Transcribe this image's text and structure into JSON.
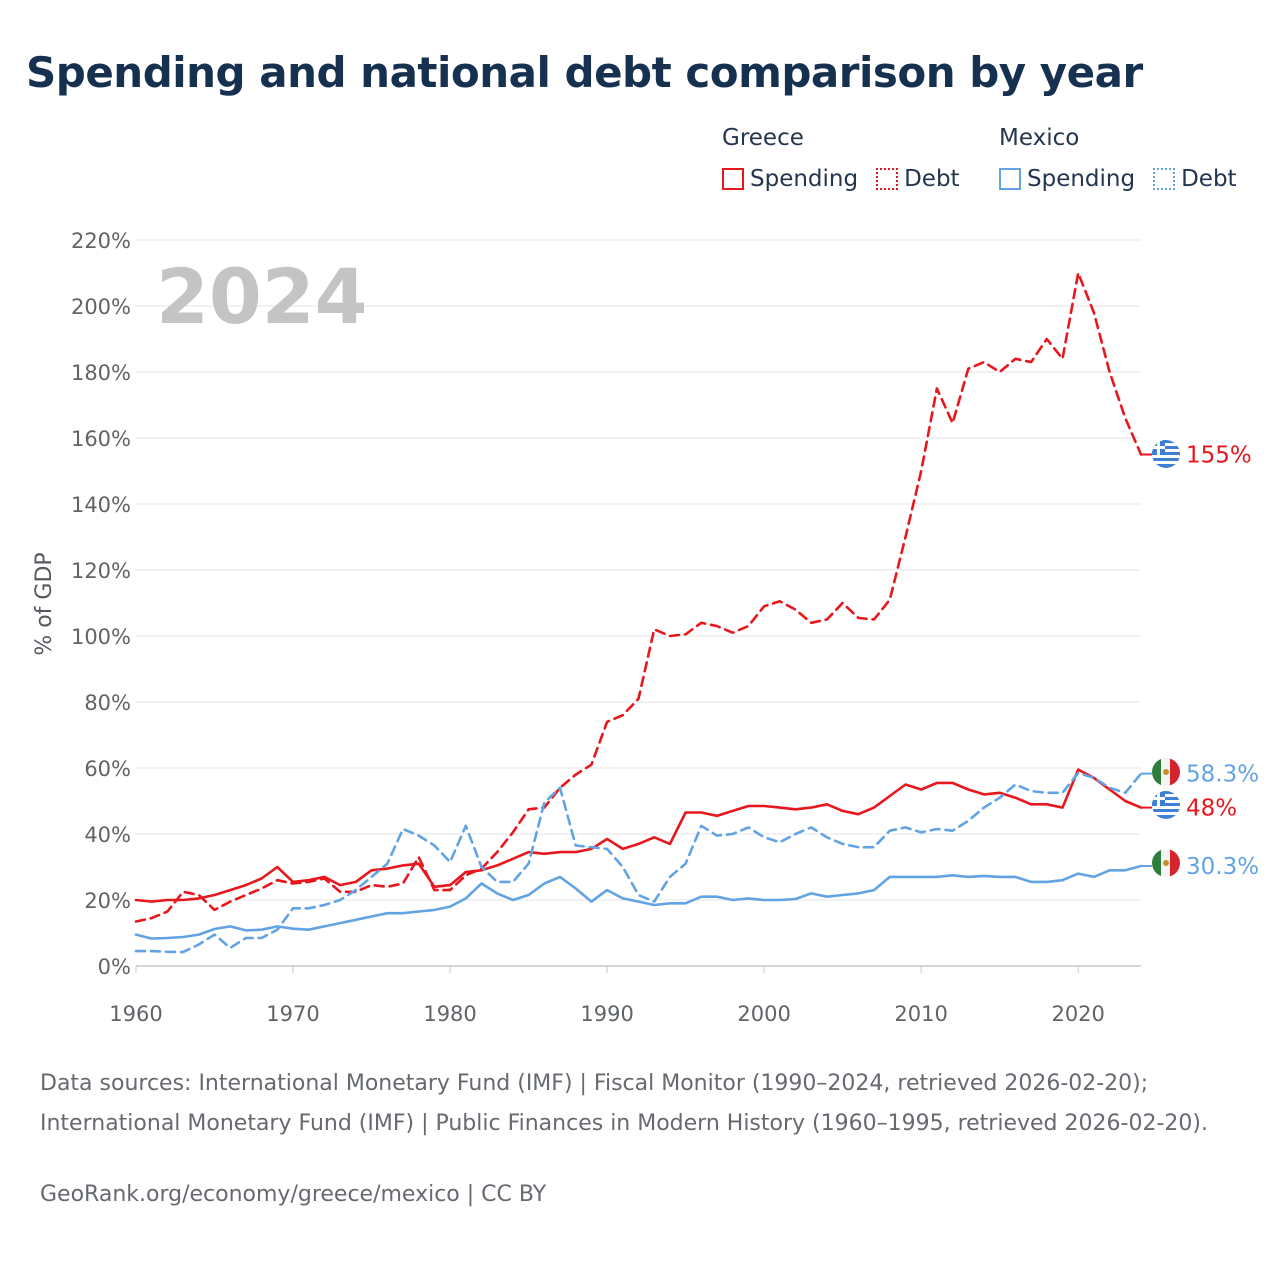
{
  "title": "Spending and national debt comparison by year",
  "legend": {
    "groups": [
      {
        "country": "Greece",
        "color": "#e8171d",
        "items": [
          {
            "label": "Spending",
            "style": "solid"
          },
          {
            "label": "Debt",
            "style": "dotted"
          }
        ]
      },
      {
        "country": "Mexico",
        "color": "#62a3e4",
        "items": [
          {
            "label": "Spending",
            "style": "solid"
          },
          {
            "label": "Debt",
            "style": "dotted"
          }
        ]
      }
    ]
  },
  "chart_data": {
    "type": "line",
    "title": "Spending and national debt comparison by year",
    "year_watermark": "2024",
    "xlabel": "",
    "ylabel": "% of GDP",
    "xlim": [
      1960,
      2024
    ],
    "ylim": [
      0,
      220
    ],
    "x_ticks": [
      1960,
      1970,
      1980,
      1990,
      2000,
      2010,
      2020
    ],
    "y_ticks": [
      0,
      20,
      40,
      60,
      80,
      100,
      120,
      140,
      160,
      180,
      200,
      220
    ],
    "y_tick_labels": [
      "0%",
      "20%",
      "40%",
      "60%",
      "80%",
      "100%",
      "120%",
      "140%",
      "160%",
      "180%",
      "200%",
      "220%"
    ],
    "grid": true,
    "x": [
      1960,
      1961,
      1962,
      1963,
      1964,
      1965,
      1966,
      1967,
      1968,
      1969,
      1970,
      1971,
      1972,
      1973,
      1974,
      1975,
      1976,
      1977,
      1978,
      1979,
      1980,
      1981,
      1982,
      1983,
      1984,
      1985,
      1986,
      1987,
      1988,
      1989,
      1990,
      1991,
      1992,
      1993,
      1994,
      1995,
      1996,
      1997,
      1998,
      1999,
      2000,
      2001,
      2002,
      2003,
      2004,
      2005,
      2006,
      2007,
      2008,
      2009,
      2010,
      2011,
      2012,
      2013,
      2014,
      2015,
      2016,
      2017,
      2018,
      2019,
      2020,
      2021,
      2022,
      2023,
      2024
    ],
    "series": [
      {
        "name": "Greece Debt",
        "country": "Greece",
        "metric": "Debt",
        "color": "#e8171d",
        "dashed": true,
        "end_label": "155%",
        "values": [
          13.5,
          14.5,
          16.5,
          22.5,
          21.5,
          17,
          19.5,
          21.5,
          23.5,
          26,
          25,
          25.5,
          26.5,
          22.5,
          22.5,
          24.5,
          24,
          25,
          33,
          23,
          23,
          27.5,
          29.5,
          34.5,
          40.5,
          47.5,
          48,
          54,
          58,
          61,
          74,
          76,
          81,
          102,
          100,
          100.5,
          104,
          103,
          101,
          103,
          109,
          110.5,
          108,
          104,
          105,
          110,
          105.5,
          105,
          111,
          130,
          150,
          175,
          164.5,
          181,
          183,
          180,
          184,
          183,
          190,
          184,
          210,
          198,
          180,
          166,
          155
        ]
      },
      {
        "name": "Greece Spending",
        "country": "Greece",
        "metric": "Spending",
        "color": "#e8171d",
        "dashed": false,
        "end_label": "48%",
        "values": [
          20,
          19.5,
          20,
          20,
          20.5,
          21.5,
          23,
          24.5,
          26.5,
          30,
          25.5,
          26,
          27,
          24.5,
          25.5,
          29,
          29.5,
          30.5,
          31,
          24,
          24.5,
          28.5,
          29,
          30.5,
          32.5,
          34.5,
          34,
          34.5,
          34.5,
          35.5,
          38.5,
          35.5,
          37,
          39,
          37,
          46.5,
          46.5,
          45.5,
          47,
          48.5,
          48.5,
          48,
          47.5,
          48,
          49,
          47,
          46,
          48,
          51.5,
          55,
          53.5,
          55.5,
          55.5,
          53.5,
          52,
          52.5,
          51,
          49,
          49,
          48,
          59.5,
          57,
          53.5,
          50,
          48
        ]
      },
      {
        "name": "Mexico Debt",
        "country": "Mexico",
        "metric": "Debt",
        "color": "#62a3e4",
        "dashed": true,
        "end_label": "58.3%",
        "values": [
          4.5,
          4.5,
          4.3,
          4.2,
          6.5,
          9.5,
          5.5,
          8.5,
          8.5,
          11,
          17.5,
          17.5,
          18.5,
          20,
          23,
          27,
          31,
          41.5,
          39.5,
          36.5,
          31.5,
          42.5,
          30,
          25.5,
          25.5,
          31,
          49.5,
          54,
          36.5,
          36,
          35.5,
          30,
          21.5,
          19.5,
          27,
          31,
          42.5,
          39.5,
          40,
          42,
          39,
          37.5,
          40,
          42,
          39,
          37,
          36,
          36,
          41,
          42,
          40.5,
          41.5,
          41,
          44,
          48,
          51,
          55,
          53,
          52.5,
          52.5,
          58.5,
          57,
          54,
          52.5,
          58.3
        ]
      },
      {
        "name": "Mexico Spending",
        "country": "Mexico",
        "metric": "Spending",
        "color": "#62a3e4",
        "dashed": false,
        "end_label": "30.3%",
        "values": [
          9.5,
          8.3,
          8.5,
          8.8,
          9.5,
          11.2,
          12,
          10.8,
          11,
          12,
          11.3,
          11,
          12,
          13,
          14,
          15,
          16,
          16,
          16.5,
          17,
          18,
          20.5,
          25,
          22,
          20,
          21.5,
          25,
          27,
          23.5,
          19.5,
          23,
          20.5,
          19.5,
          18.5,
          19,
          19,
          21,
          21,
          20,
          20.5,
          20,
          20,
          20.3,
          22,
          21,
          21.5,
          22,
          23,
          27,
          27,
          27,
          27,
          27.5,
          27,
          27.3,
          27,
          27,
          25.5,
          25.5,
          26,
          28,
          27,
          29,
          29,
          30.3
        ]
      }
    ]
  },
  "sources": {
    "text": "Data sources: International Monetary Fund (IMF) | Fiscal Monitor (1990–2024, retrieved 2026-02-20); International Monetary Fund (IMF) | Public Finances in Modern History (1960–1995, retrieved 2026-02-20).",
    "credit": "GeoRank.org/economy/greece/mexico | CC BY"
  }
}
